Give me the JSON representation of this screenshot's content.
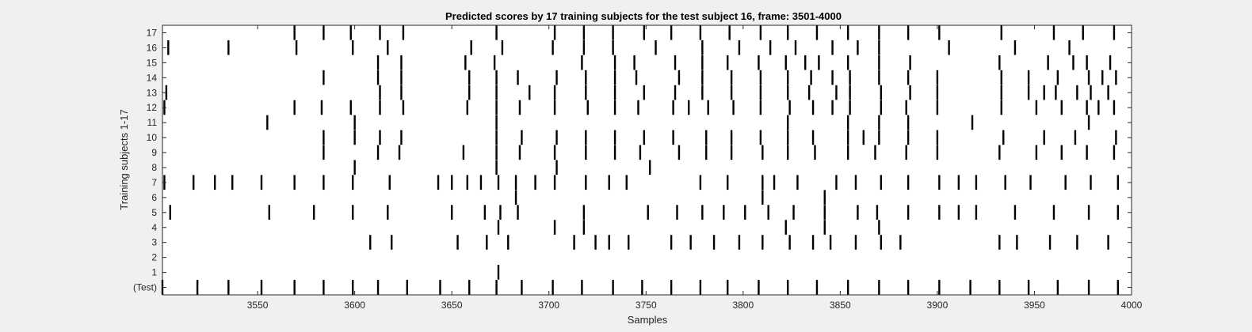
{
  "chart_data": {
    "type": "raster",
    "title": "Predicted scores by 17 training subjects for the test subject 16, frame: 3501-4000",
    "xlabel": "Samples",
    "ylabel": "Training subjects 1-17",
    "xlim": [
      3501,
      4000
    ],
    "xticks": [
      3550,
      3600,
      3650,
      3700,
      3750,
      3800,
      3850,
      3900,
      3950,
      4000
    ],
    "row_labels": [
      "(Test)",
      "1",
      "2",
      "3",
      "4",
      "5",
      "6",
      "7",
      "8",
      "9",
      "10",
      "11",
      "12",
      "13",
      "14",
      "15",
      "16",
      "17"
    ],
    "grid": false,
    "rows": [
      {
        "label": "(Test)",
        "spikes": [
          3501,
          3519,
          3535,
          3552,
          3569,
          3584,
          3599,
          3612,
          3627,
          3644,
          3659,
          3673,
          3686,
          3702,
          3717,
          3733,
          3748,
          3763,
          3778,
          3792,
          3808,
          3823,
          3838,
          3854,
          3870,
          3885,
          3901,
          3917,
          3932,
          3947,
          3962,
          3978,
          3993
        ]
      },
      {
        "label": "1",
        "spikes": [
          3674
        ]
      },
      {
        "label": "2",
        "spikes": []
      },
      {
        "label": "3",
        "spikes": [
          3608,
          3619,
          3653,
          3668,
          3679,
          3713,
          3724,
          3731,
          3741,
          3763,
          3773,
          3785,
          3798,
          3810,
          3824,
          3836,
          3845,
          3858,
          3871,
          3881,
          3932,
          3941,
          3958,
          3972,
          3988
        ]
      },
      {
        "label": "4",
        "spikes": [
          3674,
          3703,
          3718,
          3822,
          3842,
          3870
        ]
      },
      {
        "label": "5",
        "spikes": [
          3505,
          3556,
          3579,
          3599,
          3617,
          3650,
          3667,
          3675,
          3684,
          3718,
          3751,
          3766,
          3779,
          3790,
          3801,
          3813,
          3826,
          3842,
          3859,
          3869,
          3885,
          3901,
          3911,
          3920,
          3940,
          3960,
          3978,
          3993
        ]
      },
      {
        "label": "6",
        "spikes": [
          3683,
          3810,
          3842
        ]
      },
      {
        "label": "7",
        "spikes": [
          3502,
          3517,
          3528,
          3537,
          3552,
          3569,
          3584,
          3599,
          3618,
          3643,
          3650,
          3658,
          3665,
          3674,
          3683,
          3693,
          3703,
          3719,
          3731,
          3740,
          3778,
          3792,
          3810,
          3816,
          3828,
          3848,
          3858,
          3871,
          3885,
          3901,
          3911,
          3920,
          3935,
          3948,
          3966,
          3979,
          3993
        ]
      },
      {
        "label": "8",
        "spikes": [
          3600,
          3673,
          3704,
          3752
        ]
      },
      {
        "label": "9",
        "spikes": [
          3584,
          3612,
          3623,
          3656,
          3673,
          3685,
          3703,
          3719,
          3734,
          3747,
          3767,
          3781,
          3794,
          3810,
          3823,
          3837,
          3854,
          3868,
          3884,
          3900,
          3932,
          3951,
          3964,
          3977,
          3991
        ]
      },
      {
        "label": "10",
        "spikes": [
          3584,
          3600,
          3613,
          3624,
          3673,
          3686,
          3704,
          3719,
          3734,
          3749,
          3764,
          3781,
          3794,
          3809,
          3823,
          3836,
          3854,
          3862,
          3870,
          3885,
          3900,
          3934,
          3955,
          3971,
          3992
        ]
      },
      {
        "label": "11",
        "spikes": [
          3555,
          3600,
          3673,
          3823,
          3854,
          3870,
          3885,
          3918,
          3978
        ]
      },
      {
        "label": "12",
        "spikes": [
          3502,
          3569,
          3583,
          3598,
          3613,
          3625,
          3658,
          3673,
          3685,
          3703,
          3720,
          3734,
          3746,
          3764,
          3772,
          3782,
          3795,
          3809,
          3824,
          3836,
          3846,
          3855,
          3871,
          3884,
          3900,
          3933,
          3951,
          3964,
          3977,
          3983,
          3991
        ]
      },
      {
        "label": "13",
        "spikes": [
          3503,
          3613,
          3624,
          3659,
          3673,
          3690,
          3703,
          3719,
          3734,
          3749,
          3765,
          3779,
          3794,
          3809,
          3823,
          3834,
          3848,
          3855,
          3871,
          3886,
          3900,
          3933,
          3947,
          3955,
          3961,
          3972,
          3979,
          3988
        ]
      },
      {
        "label": "14",
        "spikes": [
          3584,
          3612,
          3624,
          3659,
          3673,
          3684,
          3704,
          3719,
          3734,
          3745,
          3767,
          3779,
          3794,
          3809,
          3823,
          3835,
          3846,
          3855,
          3870,
          3885,
          3900,
          3933,
          3947,
          3962,
          3978,
          3985,
          3992
        ]
      },
      {
        "label": "15",
        "spikes": [
          3612,
          3624,
          3657,
          3672,
          3717,
          3734,
          3744,
          3765,
          3779,
          3792,
          3808,
          3822,
          3832,
          3839,
          3854,
          3870,
          3886,
          3932,
          3957,
          3970,
          3977,
          3989
        ]
      },
      {
        "label": "16",
        "spikes": [
          3504,
          3535,
          3570,
          3599,
          3617,
          3660,
          3676,
          3702,
          3718,
          3733,
          3755,
          3779,
          3798,
          3814,
          3827,
          3846,
          3859,
          3870,
          3906,
          3940,
          3968
        ]
      },
      {
        "label": "17",
        "spikes": [
          3569,
          3584,
          3598,
          3613,
          3625,
          3673,
          3703,
          3718,
          3733,
          3749,
          3763,
          3778,
          3793,
          3809,
          3823,
          3838,
          3854,
          3870,
          3885,
          3901,
          3933,
          3960,
          3975,
          3991
        ]
      }
    ]
  }
}
